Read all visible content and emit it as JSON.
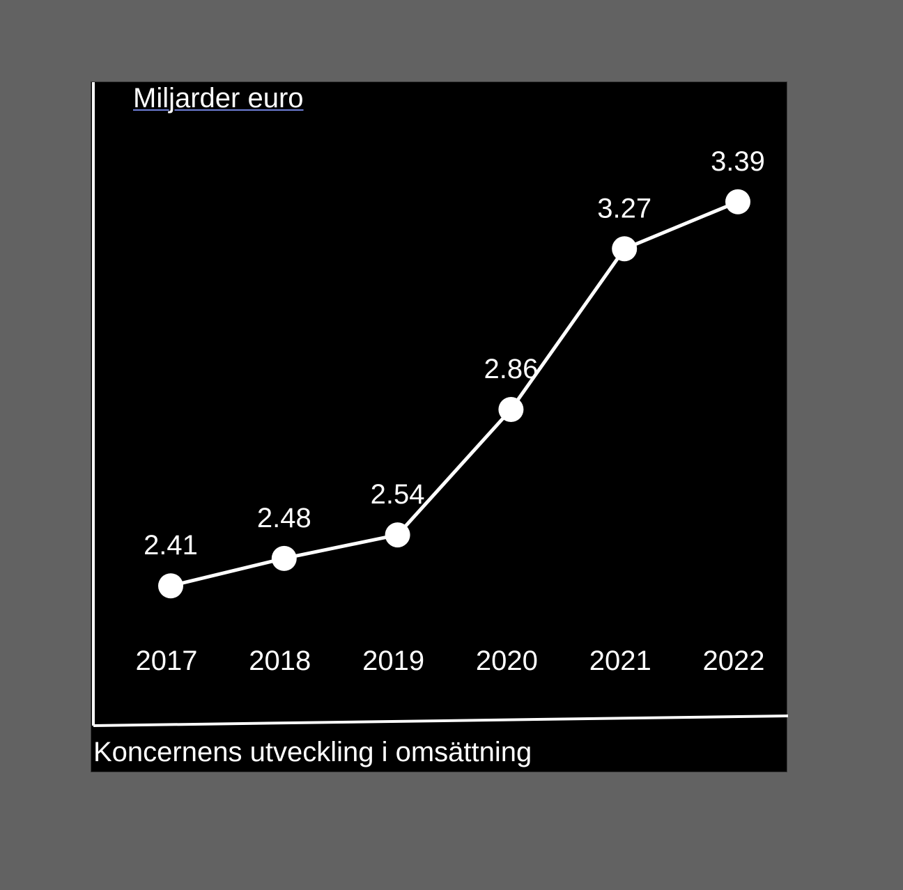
{
  "chart_data": {
    "type": "line",
    "unit_label": "Miljarder euro",
    "caption": "Koncernens utveckling i omsättning",
    "categories": [
      "2017",
      "2018",
      "2019",
      "2020",
      "2021",
      "2022"
    ],
    "series": [
      {
        "values": [
          2.41,
          2.48,
          2.54,
          2.86,
          3.27,
          3.39
        ],
        "labels": [
          "2.41",
          "2.48",
          "2.54",
          "2.86",
          "3.27",
          "3.39"
        ]
      }
    ],
    "ylim": [
      2.2,
      3.6
    ],
    "grid": false,
    "legend": "none",
    "colors": {
      "background": "#000000",
      "line": "#ffffff",
      "marker": "#ffffff",
      "text": "#ffffff",
      "page": "#626262"
    }
  }
}
